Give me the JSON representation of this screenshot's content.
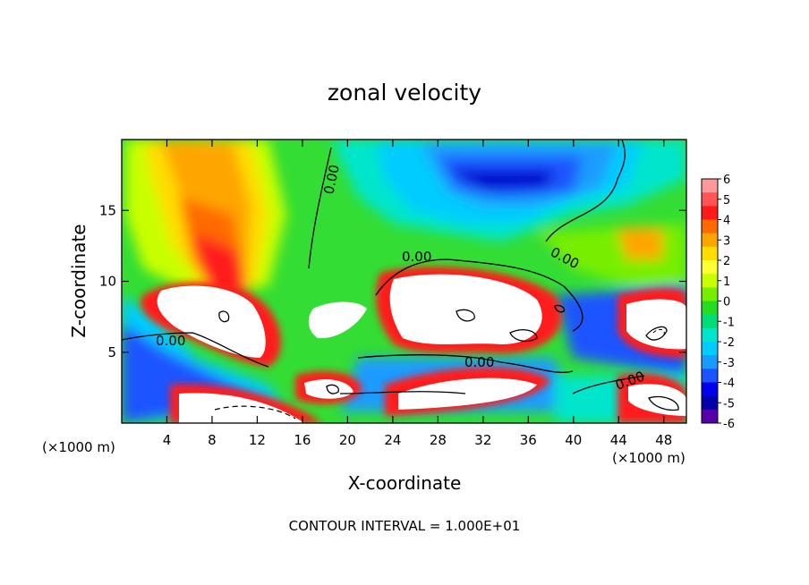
{
  "chart_data": {
    "type": "heatmap",
    "title": "zonal velocity",
    "xlabel": "X-coordinate",
    "ylabel": "Z-coordinate",
    "x_unit_left": "(×1000 m)",
    "x_unit_right": "(×1000 m)",
    "footer": "CONTOUR INTERVAL = 1.000E+01",
    "xlim": [
      0,
      50
    ],
    "ylim": [
      0,
      20
    ],
    "x_ticks": [
      4,
      8,
      12,
      16,
      20,
      24,
      28,
      32,
      36,
      40,
      44,
      48
    ],
    "y_ticks": [
      5,
      10,
      15
    ],
    "contour_label": "0.00",
    "colorbar": {
      "ticks": [
        6,
        5,
        4,
        3,
        2,
        1,
        0,
        -1,
        -2,
        -3,
        -4,
        -5,
        -6
      ],
      "colors": [
        "#ff9999",
        "#ff5555",
        "#ff1a1a",
        "#ff6a00",
        "#ffa500",
        "#ffdd00",
        "#ffff33",
        "#c8ff00",
        "#77ee00",
        "#22dd22",
        "#00dd77",
        "#00e5cc",
        "#00ccff",
        "#1a9bff",
        "#1a55ff",
        "#0000ee",
        "#0000aa",
        "#5500aa"
      ]
    }
  }
}
